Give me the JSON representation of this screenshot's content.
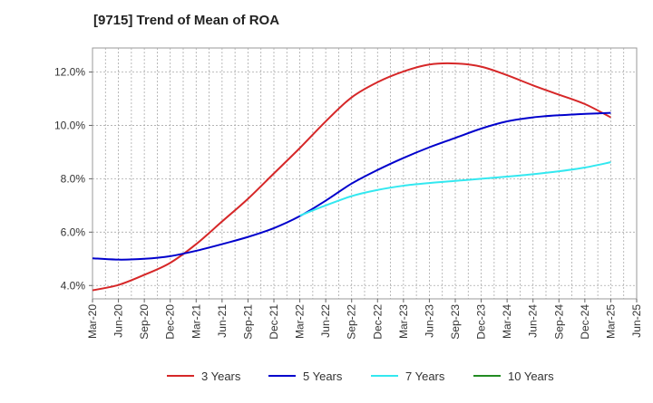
{
  "chart_data": {
    "type": "line",
    "title": "[9715]  Trend of Mean of ROA",
    "x_labels": [
      "Mar-20",
      "Jun-20",
      "Sep-20",
      "Dec-20",
      "Mar-21",
      "Jun-21",
      "Sep-21",
      "Dec-21",
      "Mar-22",
      "Jun-22",
      "Sep-22",
      "Dec-22",
      "Mar-23",
      "Jun-23",
      "Sep-23",
      "Dec-23",
      "Mar-24",
      "Jun-24",
      "Sep-24",
      "Dec-24",
      "Mar-25",
      "Jun-25"
    ],
    "y_ticks": [
      4.0,
      6.0,
      8.0,
      10.0,
      12.0
    ],
    "y_tick_labels": [
      "4.0%",
      "6.0%",
      "8.0%",
      "10.0%",
      "12.0%"
    ],
    "ylim": [
      3.5,
      12.9
    ],
    "grid": true,
    "legend_position": "bottom",
    "series": [
      {
        "name": "3 Years",
        "color": "#d62728",
        "start_index": 0,
        "values": [
          3.82,
          4.02,
          4.4,
          4.85,
          5.55,
          6.4,
          7.25,
          8.2,
          9.15,
          10.15,
          11.05,
          11.62,
          12.02,
          12.28,
          12.32,
          12.2,
          11.88,
          11.5,
          11.15,
          10.8,
          10.3
        ]
      },
      {
        "name": "5 Years",
        "color": "#0000cc",
        "start_index": 0,
        "values": [
          5.02,
          4.97,
          5.0,
          5.1,
          5.3,
          5.55,
          5.82,
          6.15,
          6.6,
          7.18,
          7.82,
          8.33,
          8.78,
          9.18,
          9.53,
          9.88,
          10.15,
          10.3,
          10.38,
          10.43,
          10.47
        ]
      },
      {
        "name": "7 Years",
        "color": "#33e8f0",
        "start_index": 8,
        "values": [
          6.62,
          7.0,
          7.35,
          7.58,
          7.74,
          7.84,
          7.92,
          8.0,
          8.08,
          8.17,
          8.28,
          8.42,
          8.62
        ]
      },
      {
        "name": "10 Years",
        "color": "#228b22",
        "start_index": 0,
        "values": []
      }
    ]
  }
}
